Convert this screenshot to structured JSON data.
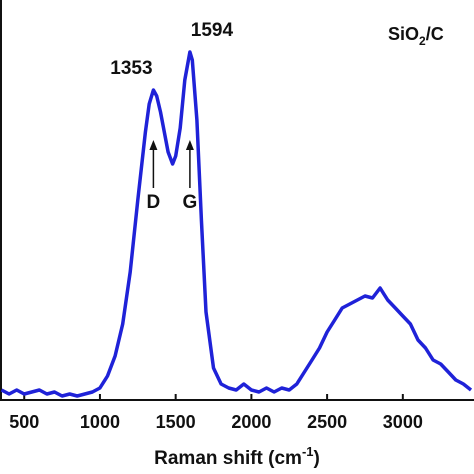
{
  "chart_data": {
    "type": "line",
    "x_label": "Raman shift (cm",
    "x_label_sup": "-1",
    "x_label_end": ")",
    "sample": "SiO",
    "sample_sub": "2",
    "sample_end": "/C",
    "xlim": [
      340,
      3470
    ],
    "ylim": [
      0,
      100
    ],
    "xticks": [
      500,
      1000,
      1500,
      2000,
      2500,
      3000
    ],
    "peaks": [
      {
        "label": "1353",
        "x": 1353,
        "band": "D"
      },
      {
        "label": "1594",
        "x": 1594,
        "band": "G"
      }
    ],
    "series": [
      {
        "name": "SiO2/C",
        "color": "#1f22d8",
        "x": [
          350,
          400,
          450,
          500,
          550,
          600,
          650,
          700,
          750,
          800,
          850,
          900,
          950,
          1000,
          1050,
          1100,
          1150,
          1200,
          1250,
          1300,
          1325,
          1353,
          1375,
          1400,
          1450,
          1480,
          1500,
          1530,
          1560,
          1594,
          1610,
          1640,
          1670,
          1700,
          1750,
          1800,
          1850,
          1900,
          1950,
          2000,
          2050,
          2100,
          2150,
          2200,
          2250,
          2300,
          2350,
          2400,
          2450,
          2500,
          2550,
          2600,
          2650,
          2700,
          2750,
          2800,
          2850,
          2900,
          2950,
          3000,
          3050,
          3100,
          3150,
          3200,
          3250,
          3300,
          3350,
          3400,
          3450
        ],
        "values": [
          2.5,
          1.5,
          2.5,
          1.5,
          2,
          2.5,
          1.5,
          2,
          1,
          1.5,
          1,
          1.5,
          2,
          3,
          6,
          11,
          19,
          32,
          50,
          67,
          74,
          77.5,
          76,
          72,
          62,
          59,
          61,
          68,
          80,
          87,
          85,
          70,
          45,
          22,
          8,
          4,
          3,
          2.5,
          4,
          2.5,
          2,
          3,
          2,
          3,
          2.5,
          4,
          7,
          10,
          13,
          17,
          20,
          23,
          24,
          25,
          26,
          25.5,
          28,
          25,
          23,
          21,
          19,
          15,
          13,
          10,
          9,
          7,
          5,
          4,
          2.5
        ]
      }
    ]
  }
}
